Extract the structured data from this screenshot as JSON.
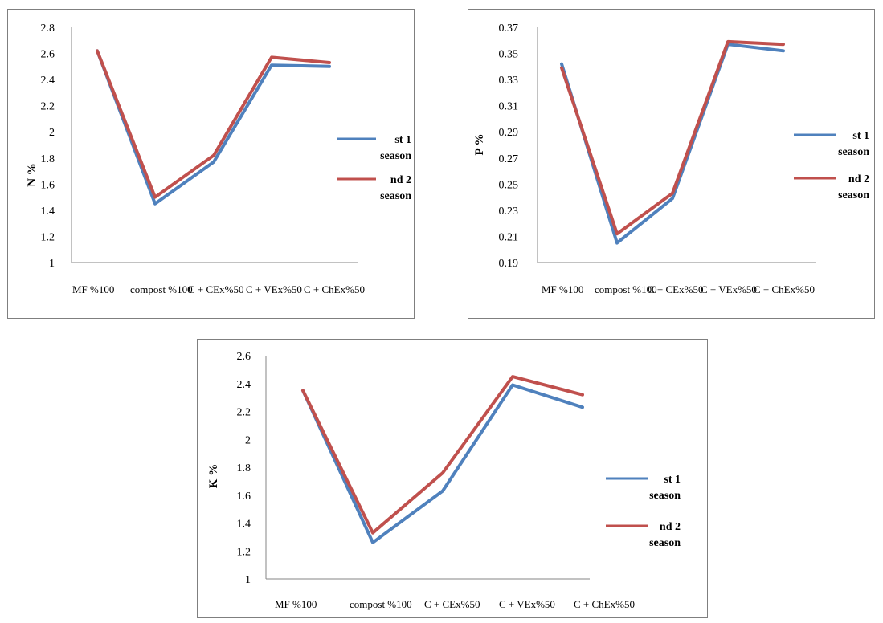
{
  "chart_data": [
    {
      "type": "line",
      "ylabel": "N %",
      "xlabel": "",
      "categories": [
        "MF %100",
        "compost %100",
        "C + CEx%50",
        "C + VEx%50",
        "C + ChEx%50"
      ],
      "ylim": [
        1,
        2.8
      ],
      "yticks": [
        "1",
        "1.2",
        "1.4",
        "1.6",
        "1.8",
        "2",
        "2.2",
        "2.4",
        "2.6",
        "2.8"
      ],
      "series": [
        {
          "name": "st 1 season",
          "color": "#4f81bd",
          "values": [
            2.62,
            1.45,
            1.77,
            2.51,
            2.5
          ]
        },
        {
          "name": "nd 2 season",
          "color": "#c0504d",
          "values": [
            2.62,
            1.5,
            1.82,
            2.57,
            2.53
          ]
        }
      ],
      "legend": "right"
    },
    {
      "type": "line",
      "ylabel": "P %",
      "xlabel": "",
      "categories": [
        "MF %100",
        "compost %100",
        "C + CEx%50",
        "C + VEx%50",
        "C + ChEx%50"
      ],
      "ylim": [
        0.19,
        0.37
      ],
      "yticks": [
        "0.19",
        "0.21",
        "0.23",
        "0.25",
        "0.27",
        "0.29",
        "0.31",
        "0.33",
        "0.35",
        "0.37"
      ],
      "series": [
        {
          "name": "st 1 season",
          "color": "#4f81bd",
          "values": [
            0.342,
            0.205,
            0.239,
            0.357,
            0.352
          ]
        },
        {
          "name": "nd 2 season",
          "color": "#c0504d",
          "values": [
            0.339,
            0.212,
            0.243,
            0.359,
            0.357
          ]
        }
      ],
      "legend": "right"
    },
    {
      "type": "line",
      "ylabel": "K %",
      "xlabel": "",
      "categories": [
        "MF %100",
        "compost %100",
        "C + CEx%50",
        "C + VEx%50",
        "C + ChEx%50"
      ],
      "ylim": [
        1,
        2.6
      ],
      "yticks": [
        "1",
        "1.2",
        "1.4",
        "1.6",
        "1.8",
        "2",
        "2.2",
        "2.4",
        "2.6"
      ],
      "series": [
        {
          "name": "st 1 season",
          "color": "#4f81bd",
          "values": [
            2.35,
            1.26,
            1.63,
            2.39,
            2.23
          ]
        },
        {
          "name": "nd 2 season",
          "color": "#c0504d",
          "values": [
            2.35,
            1.33,
            1.76,
            2.45,
            2.32
          ]
        }
      ],
      "legend": "right"
    }
  ],
  "legend_labels": {
    "s1_line1": "st 1",
    "s1_line2": "season",
    "s2_line1": "nd 2",
    "s2_line2": "season"
  }
}
